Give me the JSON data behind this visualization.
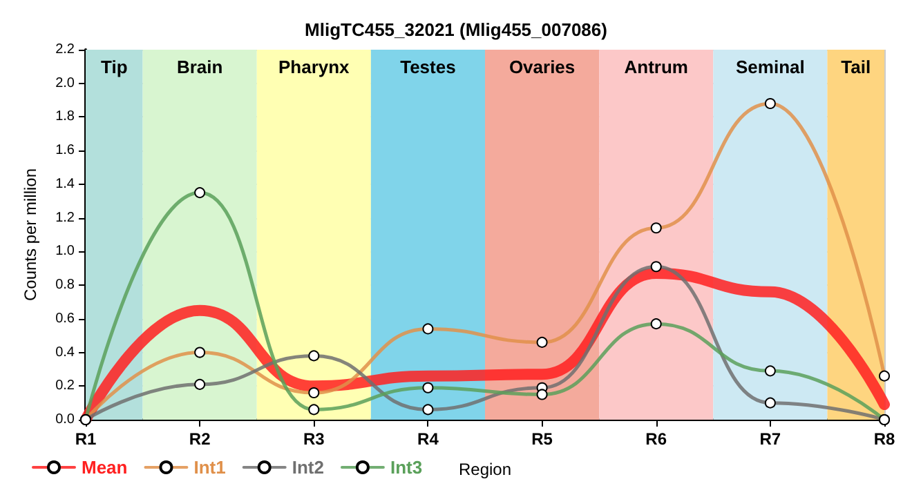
{
  "chart_data": {
    "type": "line",
    "title": "MligTC455_32021 (Mlig455_007086)",
    "xlabel": "Region",
    "ylabel": "Counts per million",
    "categories": [
      "R1",
      "R2",
      "R3",
      "R4",
      "R5",
      "R6",
      "R7",
      "R8"
    ],
    "ylim": [
      0,
      2.2
    ],
    "yticks": [
      {
        "value": 0,
        "label": "0.0"
      },
      {
        "value": 0.2,
        "label": "0.2"
      },
      {
        "value": 0.4,
        "label": "0.4"
      },
      {
        "value": 0.6,
        "label": "0.6"
      },
      {
        "value": 0.8,
        "label": "0.8"
      },
      {
        "value": 1,
        "label": "1.0"
      },
      {
        "value": 1.2,
        "label": "1.2"
      },
      {
        "value": 1.4,
        "label": "1.4"
      },
      {
        "value": 1.6,
        "label": "1.6"
      },
      {
        "value": 1.8,
        "label": "1.8"
      },
      {
        "value": 2,
        "label": "2.0"
      },
      {
        "value": 2.2,
        "label": "2.2"
      }
    ],
    "series": [
      {
        "name": "Mean",
        "color": "#ff2020",
        "marker": "none",
        "values": [
          0,
          0.65,
          0.2,
          0.26,
          0.27,
          0.87,
          0.76,
          0.09
        ]
      },
      {
        "name": "Int1",
        "color": "#e0904a",
        "values": [
          0,
          0.4,
          0.16,
          0.54,
          0.46,
          1.14,
          1.88,
          0.26
        ]
      },
      {
        "name": "Int2",
        "color": "#707070",
        "values": [
          0,
          0.21,
          0.38,
          0.06,
          0.19,
          0.91,
          0.1,
          0
        ]
      },
      {
        "name": "Int3",
        "color": "#5aa05a",
        "values": [
          0,
          1.35,
          0.06,
          0.19,
          0.15,
          0.57,
          0.29,
          0
        ]
      }
    ],
    "bands": [
      {
        "axis": "x",
        "from": "R1",
        "to": "R1",
        "label": "Tip",
        "color": "#b3e0dc"
      },
      {
        "axis": "x",
        "from": "R2",
        "to": "R2",
        "label": "Brain",
        "color": "#d8f5d0"
      },
      {
        "axis": "x",
        "from": "R3",
        "to": "R3",
        "label": "Pharynx",
        "color": "#ffffb3"
      },
      {
        "axis": "x",
        "from": "R4",
        "to": "R4",
        "label": "Testes",
        "color": "#80d4ea"
      },
      {
        "axis": "x",
        "from": "R5",
        "to": "R5",
        "label": "Ovaries",
        "color": "#f4aa9c"
      },
      {
        "axis": "x",
        "from": "R6",
        "to": "R6",
        "label": "Antrum",
        "color": "#fcc8c8"
      },
      {
        "axis": "x",
        "from": "R7",
        "to": "R7",
        "label": "Seminal",
        "color": "#cde9f3"
      },
      {
        "axis": "x",
        "from": "R8",
        "to": "R8",
        "label": "Tail",
        "color": "#fed580"
      }
    ],
    "marker": "circle",
    "grid": true,
    "legend": "bottom left",
    "line_style": "solid"
  }
}
